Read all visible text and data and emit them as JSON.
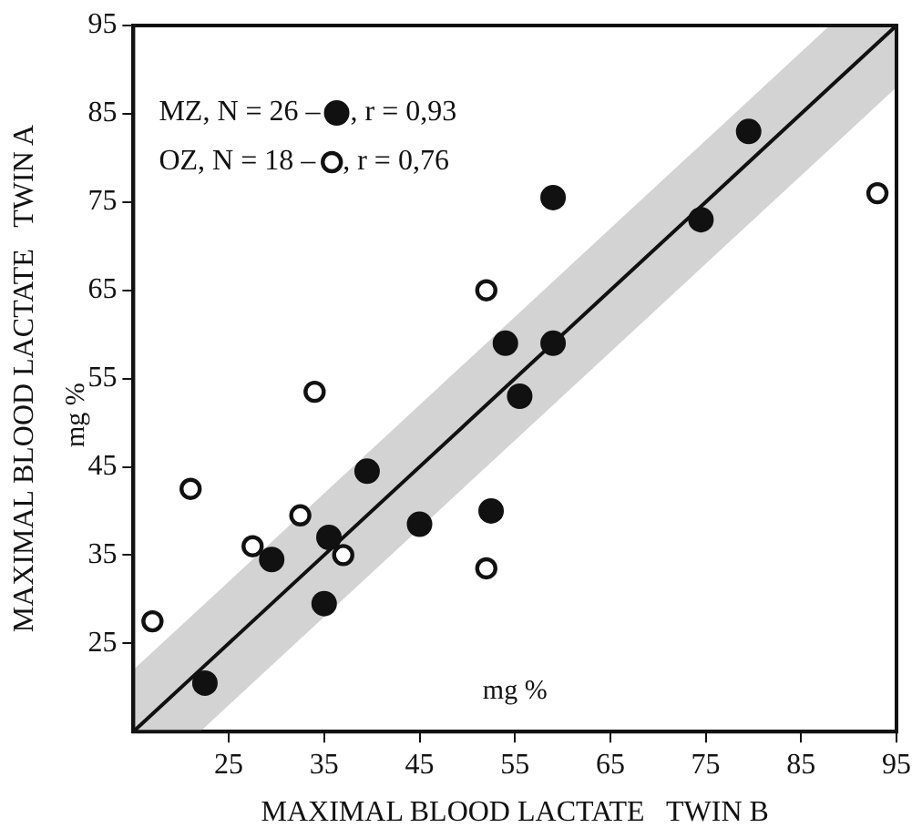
{
  "chart_data": {
    "type": "scatter",
    "xlabel": "MAXIMAL BLOOD LACTATE   TWIN B",
    "ylabel": "MAXIMAL BLOOD LACTATE   TWIN A",
    "xlim": [
      15,
      95
    ],
    "ylim": [
      15,
      95
    ],
    "xticks": [
      25,
      35,
      45,
      55,
      65,
      75,
      85,
      95
    ],
    "yticks": [
      25,
      35,
      45,
      55,
      65,
      75,
      85,
      95
    ],
    "grid": false,
    "legend": "top left",
    "annotations": [
      ", r = 0,93",
      ", r = 0,76",
      "mg %",
      "mg %"
    ],
    "series": [
      {
        "name": "MZ, N = 26 –",
        "color": "#111111",
        "marker": "circle",
        "x": [
          79.5,
          59,
          74.5,
          54,
          59,
          55.5,
          39.5,
          45,
          52.5,
          29.5,
          35.5,
          35,
          22.5
        ],
        "values": [
          83,
          75.5,
          73,
          59,
          59,
          53,
          44.5,
          38.5,
          40,
          34.5,
          37,
          29.5,
          20.5
        ]
      },
      {
        "name": "OZ, N = 18 –",
        "color": "#111111",
        "marker": "circle",
        "x": [
          93,
          52,
          34,
          21,
          32.5,
          27.5,
          37,
          52,
          17
        ],
        "values": [
          76,
          65,
          53.5,
          42.5,
          39.5,
          36,
          35,
          33.5,
          27.5
        ]
      },
      {
        "type": "line",
        "color": "#111111",
        "marker": "none",
        "x": [
          15,
          22,
          88,
          95
        ],
        "values": [
          15,
          22,
          88,
          95
        ],
        "lower": [
          15,
          15,
          81,
          88
        ],
        "upper": [
          22,
          29,
          95,
          95
        ]
      }
    ]
  }
}
